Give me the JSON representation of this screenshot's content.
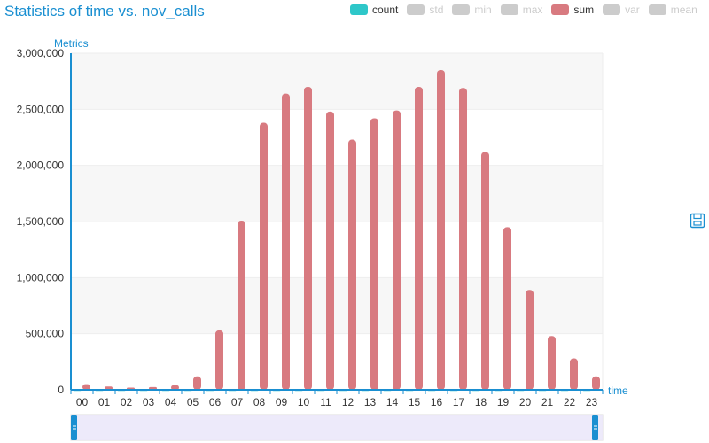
{
  "title": "Statistics of time vs. nov_calls",
  "legend": [
    {
      "name": "count",
      "color": "#2ec7c9",
      "active": true
    },
    {
      "name": "std",
      "color": "#cccccc",
      "active": false
    },
    {
      "name": "min",
      "color": "#cccccc",
      "active": false
    },
    {
      "name": "max",
      "color": "#cccccc",
      "active": false
    },
    {
      "name": "sum",
      "color": "#d87a80",
      "active": true
    },
    {
      "name": "var",
      "color": "#cccccc",
      "active": false
    },
    {
      "name": "mean",
      "color": "#cccccc",
      "active": false
    }
  ],
  "icons": {
    "save": "save-icon"
  },
  "chart_data": {
    "type": "bar",
    "xlabel": "time",
    "ylabel": "Metrics",
    "ylim": [
      0,
      3000000
    ],
    "yticks": [
      0,
      500000,
      1000000,
      1500000,
      2000000,
      2500000,
      3000000
    ],
    "ytick_labels": [
      "0",
      "500,000",
      "1,000,000",
      "1,500,000",
      "2,000,000",
      "2,500,000",
      "3,000,000"
    ],
    "grid": true,
    "legend_position": "top-right",
    "categories": [
      "00",
      "01",
      "02",
      "03",
      "04",
      "05",
      "06",
      "07",
      "08",
      "09",
      "10",
      "11",
      "12",
      "13",
      "14",
      "15",
      "16",
      "17",
      "18",
      "19",
      "20",
      "21",
      "22",
      "23"
    ],
    "series": [
      {
        "name": "count",
        "color": "#2ec7c9",
        "values": [
          2000,
          2000,
          2000,
          2000,
          2000,
          2000,
          2000,
          2000,
          2000,
          2000,
          2000,
          2000,
          2000,
          2000,
          2000,
          2000,
          2000,
          2000,
          2000,
          2000,
          2000,
          2000,
          2000,
          2000
        ]
      },
      {
        "name": "sum",
        "color": "#d87a80",
        "values": [
          50000,
          30000,
          20000,
          25000,
          40000,
          120000,
          530000,
          1500000,
          2380000,
          2640000,
          2700000,
          2480000,
          2230000,
          2420000,
          2490000,
          2700000,
          2850000,
          2690000,
          2120000,
          1450000,
          890000,
          480000,
          280000,
          120000
        ]
      }
    ]
  },
  "datazoom": {
    "start": 0,
    "end": 100
  }
}
